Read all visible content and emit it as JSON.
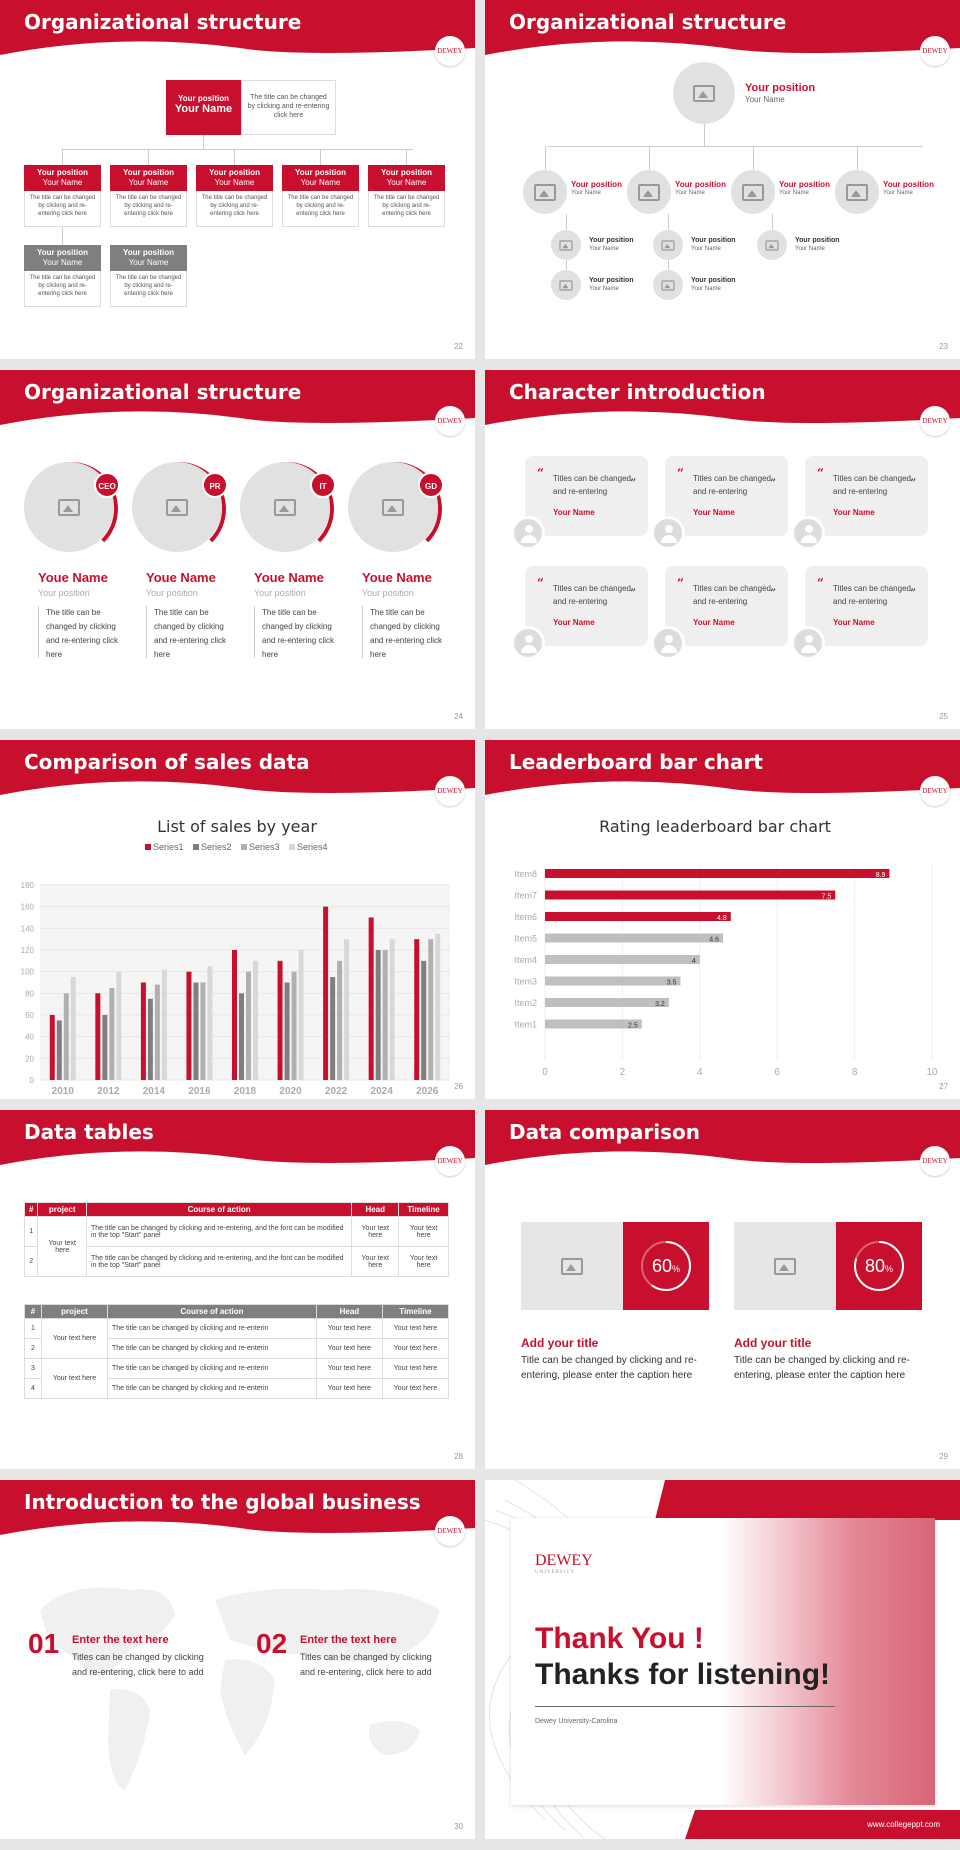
{
  "s22": {
    "title": "Organizational structure",
    "num": "22",
    "top_pos": "Your position",
    "top_name": "Your Name",
    "top_desc": "The title can be changed by clicking and re-entering click here",
    "box_pos": "Your position",
    "box_name": "Your Name",
    "box_desc": "The title can be changed by clicking and re-entering click here"
  },
  "s23": {
    "title": "Organizational structure",
    "num": "23",
    "pos": "Your position",
    "name": "Your Name"
  },
  "s24": {
    "title": "Organizational structure",
    "num": "24",
    "tags": [
      "CEO",
      "PR",
      "IT",
      "GD"
    ],
    "name": "Youe Name",
    "pos": "Your position",
    "desc": "The title can be changed by clicking and re-entering click here"
  },
  "s25": {
    "title": "Character introduction",
    "num": "25",
    "text": "Titles can be changed and re-entering",
    "name": "Your Name"
  },
  "s26": {
    "title": "Comparison of sales data",
    "num": "26"
  },
  "s27": {
    "title": "Leaderboard bar chart",
    "num": "27"
  },
  "s28": {
    "title": "Data tables",
    "num": "28",
    "headers": [
      "#",
      "project",
      "Course of action",
      "Head",
      "Timeline"
    ],
    "t1": {
      "rows": [
        {
          "n": "1",
          "c": "The title can be changed by clicking and re-entering, and the font can be modified in the top \"Start\" panel"
        },
        {
          "n": "2",
          "c": "The title can be changed by clicking and re-entering, and the font can be modified in the top \"Start\" panel"
        }
      ],
      "proj": "Your text here",
      "cell": "Your text here"
    },
    "t2": {
      "rows": [
        "1",
        "2",
        "3",
        "4"
      ],
      "c": "The title can be changed by clicking and re-enterin",
      "proj": "Your text here",
      "cell": "Your text here"
    }
  },
  "s29": {
    "title": "Data comparison",
    "num": "29",
    "cards": [
      {
        "pct": "60",
        "sym": "%",
        "title": "Add your title",
        "desc": "Title can be changed by clicking and re-entering, please enter the caption here"
      },
      {
        "pct": "80",
        "sym": "%",
        "title": "Add your title",
        "desc": "Title can be changed by clicking and re-entering, please enter the caption here"
      }
    ]
  },
  "s30": {
    "title": "Introduction to the global business",
    "num": "30",
    "items": [
      {
        "n": "01",
        "h": "Enter the text here",
        "d": "Titles can be changed by clicking and re-entering, click here to add"
      },
      {
        "n": "02",
        "h": "Enter the text here",
        "d": "Titles can be changed by clicking and re-entering, click here to add"
      }
    ]
  },
  "s31": {
    "logo": "DEWEY",
    "logo_sub": "UNIVERSITY",
    "thanks": "Thank You !",
    "listen": "Thanks for listening!",
    "sub": "Dewey University-Carolina",
    "url": "www.collegeppt.com"
  },
  "logo": "DEWEY",
  "chart_data": [
    {
      "type": "bar",
      "title": "List of sales by year",
      "categories": [
        "2010",
        "2012",
        "2014",
        "2016",
        "2018",
        "2020",
        "2022",
        "2024",
        "2026"
      ],
      "series": [
        {
          "name": "Series1",
          "values": [
            60,
            80,
            90,
            100,
            120,
            110,
            160,
            150,
            130
          ]
        },
        {
          "name": "Series2",
          "values": [
            55,
            60,
            75,
            90,
            80,
            90,
            95,
            120,
            110
          ]
        },
        {
          "name": "Series3",
          "values": [
            80,
            85,
            88,
            90,
            100,
            100,
            110,
            120,
            130
          ]
        },
        {
          "name": "Series4",
          "values": [
            95,
            100,
            102,
            105,
            110,
            120,
            130,
            130,
            135
          ]
        }
      ],
      "ylim": [
        0,
        180
      ],
      "yticks": [
        0,
        20,
        40,
        60,
        80,
        100,
        120,
        140,
        160,
        180
      ],
      "colors": [
        "#c8102e",
        "#7f7f7f",
        "#b0b0b0",
        "#d8d8d8"
      ]
    },
    {
      "type": "bar",
      "orientation": "horizontal",
      "title": "Rating leaderboard bar chart",
      "categories": [
        "Item8",
        "Item7",
        "Item6",
        "Item5",
        "Item4",
        "Item3",
        "Item2",
        "Item1"
      ],
      "values": [
        8.9,
        7.5,
        4.8,
        4.6,
        4,
        3.5,
        3.2,
        2.5
      ],
      "xlim": [
        0,
        10
      ],
      "xticks": [
        0,
        2,
        4,
        6,
        8,
        10
      ]
    }
  ]
}
